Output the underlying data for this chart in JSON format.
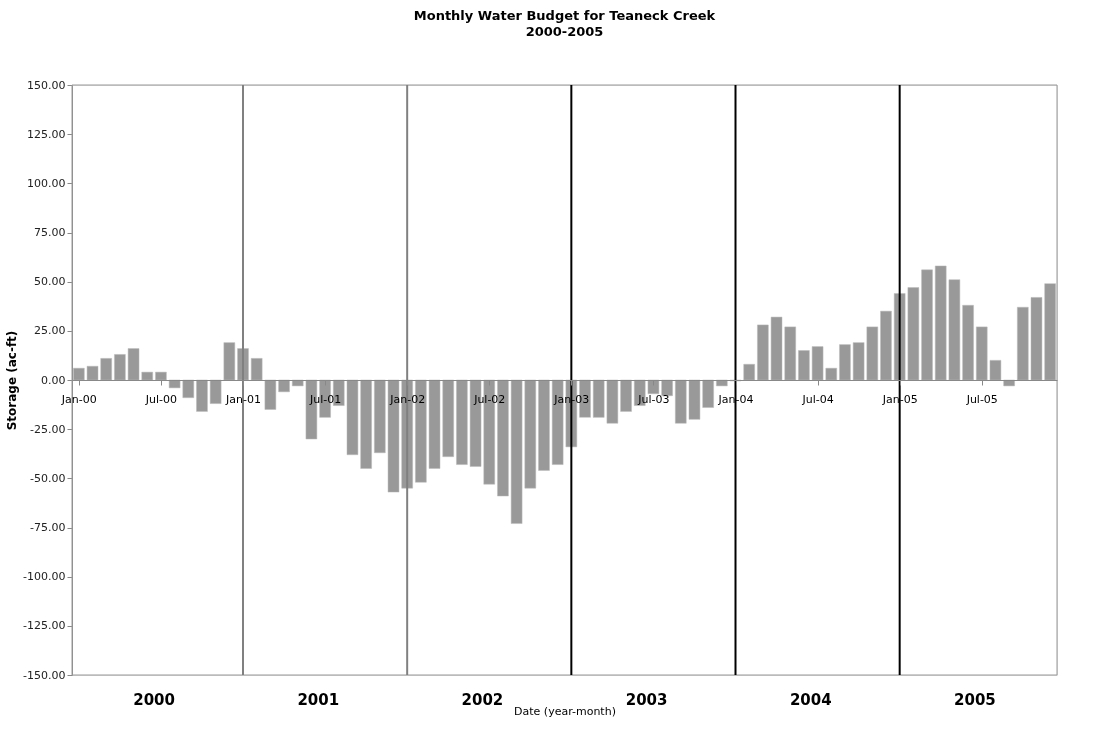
{
  "chart_data": {
    "type": "bar",
    "title": "Monthly Water Budget for Teaneck Creek",
    "subtitle": "2000-2005",
    "xlabel": "Date (year-month)",
    "ylabel": "Storage (ac-ft)",
    "categories": [
      "Jan-00",
      null,
      null,
      null,
      null,
      null,
      "Jul-00",
      null,
      null,
      null,
      null,
      null,
      "Jan-01",
      null,
      null,
      null,
      null,
      null,
      "Jul-01",
      null,
      null,
      null,
      null,
      null,
      "Jan-02",
      null,
      null,
      null,
      null,
      null,
      "Jul-02",
      null,
      null,
      null,
      null,
      null,
      "Jan-03",
      null,
      null,
      null,
      null,
      null,
      "Jul-03",
      null,
      null,
      null,
      null,
      null,
      "Jan-04",
      null,
      null,
      null,
      null,
      null,
      "Jul-04",
      null,
      null,
      null,
      null,
      null,
      "Jan-05",
      null,
      null,
      null,
      null,
      null,
      "Jul-05",
      null,
      null,
      null,
      null,
      null
    ],
    "values": [
      6,
      7,
      11,
      13,
      16,
      4,
      4,
      -4,
      -9,
      -16,
      -12,
      19,
      16,
      11,
      -15,
      -6,
      -3,
      -30,
      -19,
      -13,
      -38,
      -45,
      -37,
      -57,
      -55,
      -52,
      -45,
      -39,
      -43,
      -44,
      -53,
      -59,
      -73,
      -55,
      -46,
      -43,
      -34,
      -19,
      -19,
      -22,
      -16,
      -13,
      -7,
      -8,
      -22,
      -20,
      -14,
      -3,
      -0.5,
      8,
      28,
      32,
      27,
      15,
      17,
      6,
      18,
      19,
      27,
      35,
      44,
      47,
      56,
      58,
      51,
      38,
      27,
      10,
      -3,
      37,
      42,
      49
    ],
    "color": "#999999",
    "ylim": [
      -150,
      150
    ],
    "yticks": [
      {
        "value": 150,
        "label": "150.00"
      },
      {
        "value": 125,
        "label": "125.00"
      },
      {
        "value": 100,
        "label": "100.00"
      },
      {
        "value": 75,
        "label": "75.00"
      },
      {
        "value": 50,
        "label": "50.00"
      },
      {
        "value": 25,
        "label": "25.00"
      },
      {
        "value": 0,
        "label": "0.00"
      },
      {
        "value": -25,
        "label": "-25.00"
      },
      {
        "value": -50,
        "label": "-50.00"
      },
      {
        "value": -75,
        "label": "-75.00"
      },
      {
        "value": -100,
        "label": "-100.00"
      },
      {
        "value": -125,
        "label": "-125.00"
      },
      {
        "value": -150,
        "label": "-150.00"
      }
    ],
    "ref_lines": [
      {
        "axis": "x",
        "value": "Jan-01",
        "color": "#808080"
      },
      {
        "axis": "x",
        "value": "Jan-02",
        "color": "#808080"
      },
      {
        "axis": "x",
        "value": "Jan-03",
        "color": "#000000"
      },
      {
        "axis": "x",
        "value": "Jan-04",
        "color": "#000000"
      },
      {
        "axis": "x",
        "value": "Jan-05",
        "color": "#000000"
      }
    ],
    "annotations": [
      "2000",
      "2001",
      "2002",
      "2003",
      "2004",
      "2005"
    ],
    "grid": false
  }
}
